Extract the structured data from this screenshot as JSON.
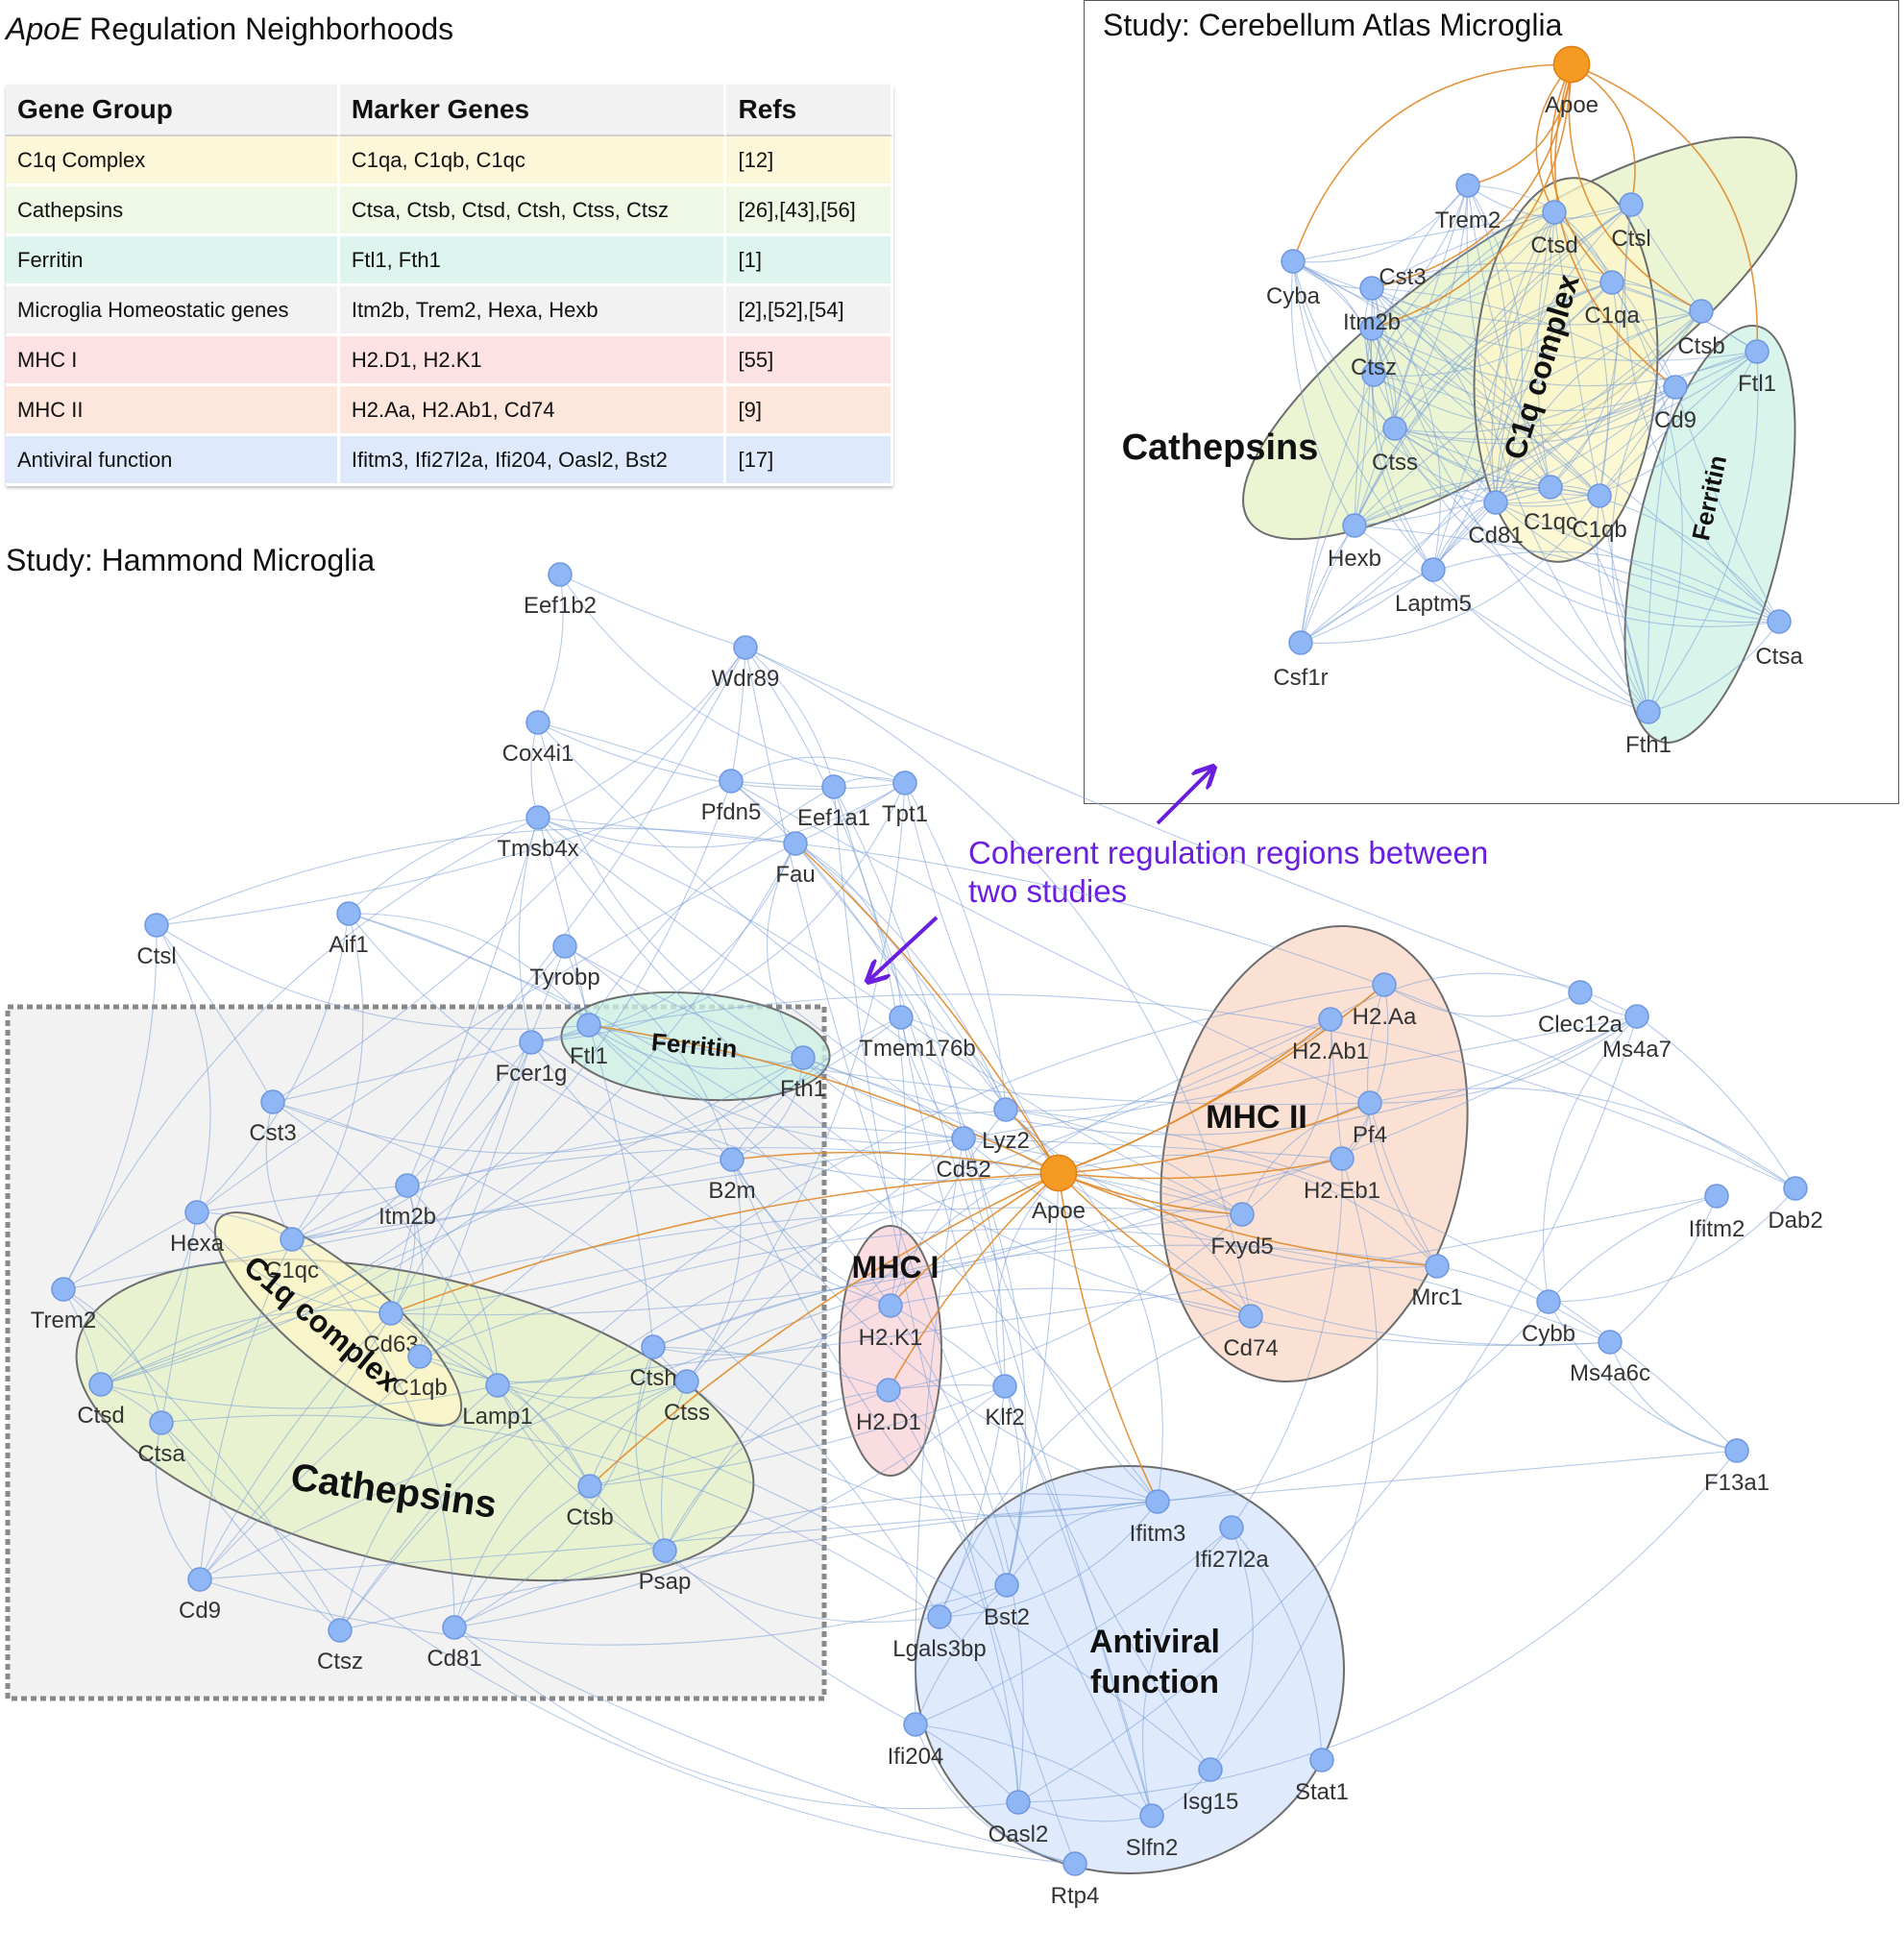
{
  "figure": {
    "title_italic": "ApoE",
    "title_rest": " Regulation Neighborhoods",
    "hammond_title": "Study: Hammond Microglia",
    "cerebellum_title": "Study: Cerebellum Atlas Microglia",
    "note_line1": "Coherent regulation regions between",
    "note_line2": "two studies"
  },
  "table": {
    "headers": [
      "Gene Group",
      "Marker Genes",
      "Refs"
    ],
    "rows": [
      {
        "group": "C1q Complex",
        "markers": "C1qa, C1qb, C1qc",
        "refs": "[12]",
        "color": "#fdf7d9"
      },
      {
        "group": "Cathepsins",
        "markers": "Ctsa, Ctsb, Ctsd, Ctsh, Ctss, Ctsz",
        "refs": "[26],[43],[56]",
        "color": "#eef8e4"
      },
      {
        "group": "Ferritin",
        "markers": "Ftl1, Fth1",
        "refs": "[1]",
        "color": "#def5ef"
      },
      {
        "group": "Microglia Homeostatic genes",
        "markers": "Itm2b, Trem2, Hexa, Hexb",
        "refs": "[2],[52],[54]",
        "color": "#f2f2f2"
      },
      {
        "group": "MHC I",
        "markers": "H2.D1, H2.K1",
        "refs": "[55]",
        "color": "#fde2e4"
      },
      {
        "group": "MHC II",
        "markers": "H2.Aa, H2.Ab1, Cd74",
        "refs": "[9]",
        "color": "#fde6dc"
      },
      {
        "group": "Antiviral function",
        "markers": "Ifitm3, Ifi27l2a, Ifi204, Oasl2, Bst2",
        "refs": "[17]",
        "color": "#deeafb"
      }
    ]
  },
  "colors": {
    "node": "#8fb6f5",
    "node_stroke": "#6f97e0",
    "apoe": "#f59a23",
    "edge_blue": "#7a9fd6",
    "edge_orange": "#e08a2a",
    "arrow": "#6a1ee0"
  },
  "hammond": {
    "groups": [
      {
        "id": "cathepsins",
        "label": "Cathepsins",
        "fill": "#e6f2c8"
      },
      {
        "id": "c1q",
        "label": "C1q complex",
        "fill": "#fbf6c6"
      },
      {
        "id": "ferritin",
        "label": "Ferritin",
        "fill": "#cdf1e6"
      },
      {
        "id": "mhc1",
        "label": "MHC I",
        "fill": "#f9d3d7"
      },
      {
        "id": "mhc2",
        "label": "MHC II",
        "fill": "#f8d9c8"
      },
      {
        "id": "antiviral",
        "label": "Antiviral function",
        "fill": "#d6e4fb"
      }
    ],
    "nodes": [
      "Eef1b2",
      "Wdr89",
      "Cox4i1",
      "Pfdn5",
      "Eef1a1",
      "Tpt1",
      "Tmsb4x",
      "Fau",
      "Ctsl",
      "Aif1",
      "Tyrobp",
      "Fcer1g",
      "Ftl1",
      "Fth1",
      "Tmem176b",
      "Cst3",
      "Itm2b",
      "B2m",
      "Lyz2",
      "Cd52",
      "Apoe",
      "Hexa",
      "Trem2",
      "C1qc",
      "Cd63",
      "C1qb",
      "Lamp1",
      "Ctsh",
      "Ctss",
      "Ctsd",
      "Ctsa",
      "Ctsb",
      "Psap",
      "Cd9",
      "Ctsz",
      "Cd81",
      "H2.K1",
      "H2.D1",
      "Klf2",
      "H2.Aa",
      "H2.Ab1",
      "Pf4",
      "H2.Eb1",
      "Fxyd5",
      "Cd74",
      "Clec12a",
      "Ms4a7",
      "Ifitm2",
      "Dab2",
      "Mrc1",
      "Cybb",
      "Ms4a6c",
      "F13a1",
      "Ifitm3",
      "Ifi27l2a",
      "Bst2",
      "Lgals3bp",
      "Ifi204",
      "Oasl2",
      "Isg15",
      "Slfn2",
      "Stat1",
      "Rtp4"
    ]
  },
  "cerebellum": {
    "groups": [
      {
        "id": "cathepsins",
        "label": "Cathepsins",
        "fill": "#e6f2c8"
      },
      {
        "id": "c1q",
        "label": "C1q complex",
        "fill": "#fbf6c6"
      },
      {
        "id": "ferritin",
        "label": "Ferritin",
        "fill": "#cdf1e6"
      }
    ],
    "nodes": [
      "Apoe",
      "Trem2",
      "Ctsd",
      "Ctsl",
      "Cyba",
      "Cst3",
      "C1qa",
      "Itm2b",
      "Ctsb",
      "Ftl1",
      "Ctsz",
      "Cd9",
      "Ctss",
      "C1qc",
      "C1qb",
      "Cd81",
      "Hexb",
      "Laptm5",
      "Csf1r",
      "Ctsa",
      "Fth1"
    ]
  }
}
